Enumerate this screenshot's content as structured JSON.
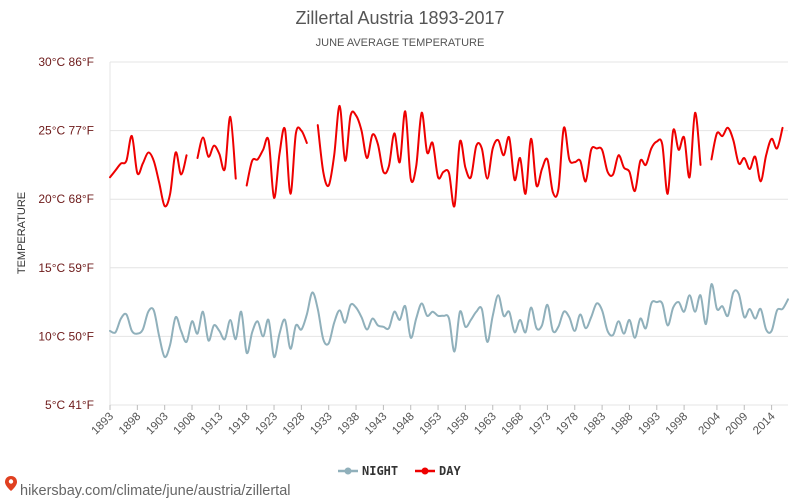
{
  "chart_data": {
    "type": "line",
    "title": "Zillertal Austria 1893-2017",
    "subtitle": "JUNE AVERAGE TEMPERATURE",
    "ylabel": "TEMPERATURE",
    "ylim": [
      5,
      30
    ],
    "grid": true,
    "legend_placement": "bottom-center",
    "yticks": [
      {
        "value": 30,
        "label": "30°C 86°F"
      },
      {
        "value": 25,
        "label": "25°C 77°F"
      },
      {
        "value": 20,
        "label": "20°C 68°F"
      },
      {
        "value": 15,
        "label": "15°C 59°F"
      },
      {
        "value": 10,
        "label": "10°C 50°F"
      },
      {
        "value": 5,
        "label": "5°C 41°F"
      }
    ],
    "xticks": [
      {
        "value": 1893,
        "label": "1893"
      },
      {
        "value": 1898,
        "label": "1898"
      },
      {
        "value": 1903,
        "label": "1903"
      },
      {
        "value": 1908,
        "label": "1908"
      },
      {
        "value": 1913,
        "label": "1913"
      },
      {
        "value": 1918,
        "label": "1918"
      },
      {
        "value": 1923,
        "label": "1923"
      },
      {
        "value": 1928,
        "label": "1928"
      },
      {
        "value": 1933,
        "label": "1933"
      },
      {
        "value": 1938,
        "label": "1938"
      },
      {
        "value": 1943,
        "label": "1943"
      },
      {
        "value": 1948,
        "label": "1948"
      },
      {
        "value": 1953,
        "label": "1953"
      },
      {
        "value": 1958,
        "label": "1958"
      },
      {
        "value": 1963,
        "label": "1963"
      },
      {
        "value": 1968,
        "label": "1968"
      },
      {
        "value": 1973,
        "label": "1973"
      },
      {
        "value": 1978,
        "label": "1978"
      },
      {
        "value": 1983,
        "label": "1983"
      },
      {
        "value": 1988,
        "label": "1988"
      },
      {
        "value": 1993,
        "label": "1993"
      },
      {
        "value": 1998,
        "label": "1998"
      },
      {
        "value": 2004,
        "label": "2004"
      },
      {
        "value": 2009,
        "label": "2009"
      },
      {
        "value": 2014,
        "label": "2014"
      }
    ],
    "xlim": [
      1893,
      2017
    ],
    "series": [
      {
        "name": "NIGHT",
        "color": "#90b0bb",
        "x": [
          1893,
          1894,
          1895,
          1896,
          1897,
          1898,
          1899,
          1900,
          1901,
          1902,
          1903,
          1904,
          1905,
          1906,
          1907,
          1908,
          1909,
          1910,
          1911,
          1912,
          1913,
          1914,
          1915,
          1916,
          1917,
          1918,
          1919,
          1920,
          1921,
          1922,
          1923,
          1924,
          1925,
          1926,
          1927,
          1928,
          1929,
          1930,
          1931,
          1932,
          1933,
          1934,
          1935,
          1936,
          1937,
          1938,
          1939,
          1940,
          1941,
          1942,
          1943,
          1944,
          1945,
          1946,
          1947,
          1948,
          1949,
          1950,
          1951,
          1952,
          1953,
          1954,
          1955,
          1956,
          1957,
          1958,
          1959,
          1960,
          1961,
          1962,
          1963,
          1964,
          1965,
          1966,
          1967,
          1968,
          1969,
          1970,
          1971,
          1972,
          1973,
          1974,
          1975,
          1976,
          1977,
          1978,
          1979,
          1980,
          1981,
          1982,
          1983,
          1984,
          1985,
          1986,
          1987,
          1988,
          1989,
          1990,
          1991,
          1992,
          1993,
          1994,
          1995,
          1996,
          1997,
          1998,
          1999,
          2000,
          2001,
          2002,
          2003,
          2004,
          2005,
          2006,
          2007,
          2008,
          2009,
          2010,
          2011,
          2012,
          2013,
          2014,
          2015,
          2016,
          2017
        ],
        "values": [
          10.4,
          10.3,
          11.3,
          11.6,
          10.4,
          10.2,
          10.5,
          11.8,
          11.9,
          10.0,
          8.5,
          9.4,
          11.4,
          10.4,
          9.6,
          11.1,
          10.2,
          11.8,
          9.7,
          10.8,
          10.4,
          9.8,
          11.2,
          9.8,
          11.8,
          8.8,
          10.3,
          11.1,
          10.0,
          11.2,
          8.5,
          10.2,
          11.2,
          9.1,
          10.8,
          10.5,
          11.6,
          13.2,
          12.0,
          9.8,
          9.5,
          11.0,
          11.9,
          11.0,
          12.3,
          12.1,
          11.4,
          10.5,
          11.3,
          10.8,
          10.7,
          10.6,
          11.8,
          11.2,
          12.2,
          9.9,
          11.3,
          12.4,
          11.5,
          11.8,
          11.5,
          11.5,
          11.3,
          8.9,
          11.8,
          10.7,
          11.2,
          11.8,
          12.0,
          9.6,
          11.5,
          13.0,
          11.5,
          11.8,
          10.3,
          11.2,
          10.3,
          12.1,
          10.6,
          10.8,
          12.3,
          10.4,
          10.7,
          11.8,
          11.4,
          10.4,
          11.6,
          10.6,
          11.4,
          12.4,
          11.9,
          10.4,
          10.1,
          11.1,
          10.2,
          11.2,
          9.9,
          11.3,
          10.6,
          12.4,
          12.5,
          12.4,
          10.8,
          12.1,
          12.5,
          11.8,
          13.0,
          11.8,
          13.0,
          10.9,
          13.8,
          12.0,
          12.2,
          11.5,
          13.2,
          13.1,
          11.4,
          12.0,
          11.3,
          12.0,
          10.5,
          10.4,
          11.9,
          12.0,
          12.7
        ]
      },
      {
        "name": "DAY",
        "color": "#ee0000",
        "x": [
          1893,
          1894,
          1895,
          1896,
          1897,
          1898,
          1899,
          1900,
          1901,
          1902,
          1903,
          1904,
          1905,
          1906,
          1907,
          1908,
          1909,
          1910,
          1911,
          1912,
          1913,
          1914,
          1915,
          1916,
          1917,
          1918,
          1919,
          1920,
          1921,
          1922,
          1923,
          1924,
          1925,
          1926,
          1927,
          1928,
          1929,
          1930,
          1931,
          1932,
          1933,
          1934,
          1935,
          1936,
          1937,
          1938,
          1939,
          1940,
          1941,
          1942,
          1943,
          1944,
          1945,
          1946,
          1947,
          1948,
          1949,
          1950,
          1951,
          1952,
          1953,
          1954,
          1955,
          1956,
          1957,
          1958,
          1959,
          1960,
          1961,
          1962,
          1963,
          1964,
          1965,
          1966,
          1967,
          1968,
          1969,
          1970,
          1971,
          1972,
          1973,
          1974,
          1975,
          1976,
          1977,
          1978,
          1979,
          1980,
          1981,
          1982,
          1983,
          1984,
          1985,
          1986,
          1987,
          1988,
          1989,
          1990,
          1991,
          1992,
          1993,
          1994,
          1995,
          1996,
          1997,
          1998,
          1999,
          2000,
          2001,
          2002,
          2003,
          2004,
          2005,
          2006,
          2007,
          2008,
          2009,
          2010,
          2011,
          2012,
          2013,
          2014,
          2015,
          2016,
          2017
        ],
        "values": [
          21.6,
          22.1,
          22.6,
          22.8,
          24.6,
          21.9,
          22.6,
          23.4,
          22.8,
          21.2,
          19.5,
          20.4,
          23.4,
          21.8,
          23.2,
          null,
          23.0,
          24.5,
          23.1,
          23.9,
          23.3,
          22.2,
          26.0,
          21.5,
          null,
          21.0,
          22.8,
          22.9,
          23.6,
          24.3,
          20.1,
          23.3,
          25.1,
          20.4,
          24.8,
          25.0,
          24.1,
          null,
          25.4,
          22.0,
          21.0,
          23.2,
          26.8,
          22.8,
          26.1,
          26.1,
          25.0,
          23.0,
          24.7,
          24.0,
          22.0,
          22.4,
          24.8,
          22.7,
          26.4,
          21.5,
          22.4,
          26.3,
          23.4,
          24.1,
          21.6,
          22.0,
          21.9,
          19.5,
          24.2,
          22.3,
          21.6,
          23.9,
          23.7,
          21.5,
          23.7,
          24.3,
          23.2,
          24.5,
          21.4,
          23.0,
          20.4,
          24.4,
          21.0,
          22.2,
          22.9,
          20.5,
          20.7,
          25.2,
          22.9,
          22.7,
          22.8,
          21.3,
          23.6,
          23.7,
          23.6,
          22.0,
          21.8,
          23.2,
          22.3,
          22.0,
          20.6,
          22.8,
          22.5,
          23.7,
          24.2,
          24.0,
          20.4,
          25.0,
          23.6,
          24.5,
          21.6,
          26.3,
          22.5,
          null,
          22.9,
          24.8,
          24.6,
          25.2,
          24.3,
          22.6,
          23.0,
          22.2,
          23.1,
          21.3,
          23.2,
          24.4,
          23.7,
          25.2,
          null
        ]
      }
    ]
  },
  "watermark": {
    "text": "hikersbay.com/climate/june/austria/zillertal",
    "icon": "map-pin-icon",
    "icon_color": "#e04020"
  }
}
